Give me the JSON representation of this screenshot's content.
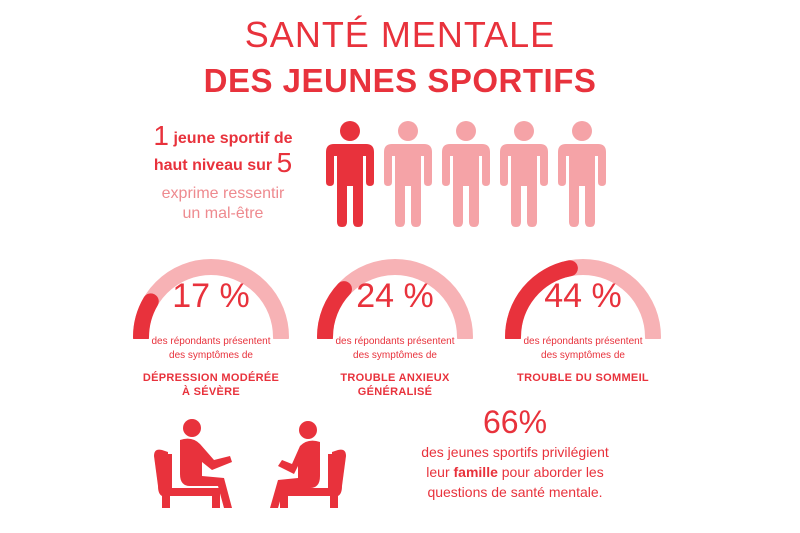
{
  "title": {
    "line1": "SANTÉ MENTALE",
    "line2": "DES JEUNES SPORTIFS"
  },
  "ratio_stat": {
    "num1": "1",
    "text1": "jeune sportif de",
    "text2": "haut niveau sur",
    "num2": "5",
    "sub1": "exprime ressentir",
    "sub2": "un mal-être",
    "highlighted_count": 1,
    "total_count": 5
  },
  "gauges": [
    {
      "value": 17,
      "pct_text": "17 %",
      "desc1": "des répondants présentent",
      "desc2": "des symptômes de",
      "label1": "DÉPRESSION MODÉRÉE",
      "label2": "À SÉVÈRE"
    },
    {
      "value": 24,
      "pct_text": "24 %",
      "desc1": "des répondants présentent",
      "desc2": "des symptômes de",
      "label1": "TROUBLE ANXIEUX",
      "label2": "GÉNÉRALISÉ"
    },
    {
      "value": 44,
      "pct_text": "44 %",
      "desc1": "des répondants présentent",
      "desc2": "des symptômes de",
      "label1": "TROUBLE DU SOMMEIL",
      "label2": ""
    }
  ],
  "family_stat": {
    "num": "66%",
    "line1": "des jeunes sportifs privilégient",
    "line2_pre": "leur ",
    "line2_bold": "famille",
    "line2_post": " pour aborder les",
    "line3": "questions de santé mentale."
  },
  "colors": {
    "accent": "#e8323c",
    "light": "#f5a3a7",
    "track": "#f7b2b5"
  },
  "icons": [
    "person-icon",
    "armchair-conversation-icon"
  ]
}
